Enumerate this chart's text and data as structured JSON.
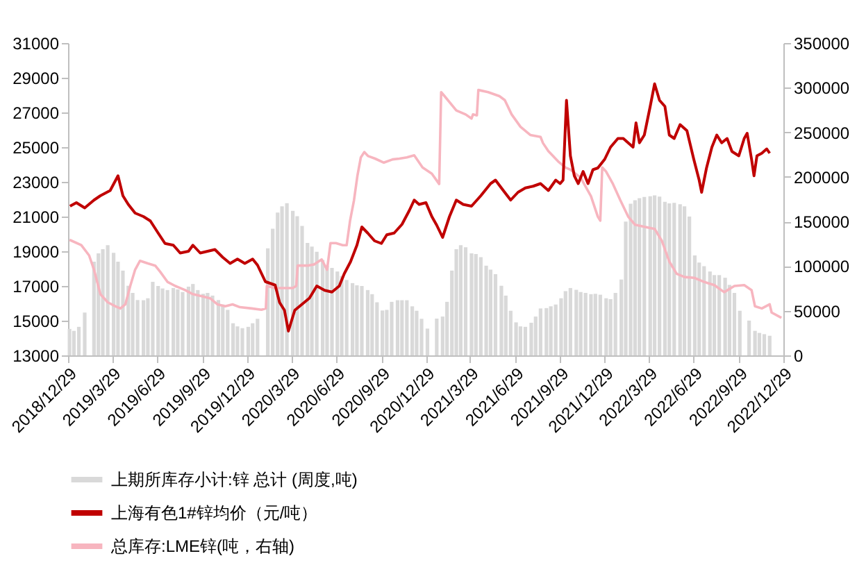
{
  "chart_data": {
    "type": "line",
    "xlim": [
      "2018-12-29",
      "2022-12-29"
    ],
    "xticks": [
      {
        "value": "2018-12-29",
        "label": "2018/12/29"
      },
      {
        "value": "2019-03-29",
        "label": "2019/3/29"
      },
      {
        "value": "2019-06-29",
        "label": "2019/6/29"
      },
      {
        "value": "2019-09-29",
        "label": "2019/9/29"
      },
      {
        "value": "2019-12-29",
        "label": "2019/12/29"
      },
      {
        "value": "2020-03-29",
        "label": "2020/3/29"
      },
      {
        "value": "2020-06-29",
        "label": "2020/6/29"
      },
      {
        "value": "2020-09-29",
        "label": "2020/9/29"
      },
      {
        "value": "2020-12-29",
        "label": "2020/12/29"
      },
      {
        "value": "2021-03-29",
        "label": "2021/3/29"
      },
      {
        "value": "2021-06-29",
        "label": "2021/6/29"
      },
      {
        "value": "2021-09-29",
        "label": "2021/9/29"
      },
      {
        "value": "2021-12-29",
        "label": "2021/12/29"
      },
      {
        "value": "2022-03-29",
        "label": "2022/3/29"
      },
      {
        "value": "2022-06-29",
        "label": "2022/6/29"
      },
      {
        "value": "2022-09-29",
        "label": "2022/9/29"
      },
      {
        "value": "2022-12-29",
        "label": "2022/12/29"
      }
    ],
    "ylim": [
      13000,
      31000
    ],
    "yticks": [
      13000,
      15000,
      17000,
      19000,
      21000,
      23000,
      25000,
      27000,
      29000,
      31000
    ],
    "y2lim": [
      0,
      350000
    ],
    "y2ticks": [
      0,
      50000,
      100000,
      150000,
      200000,
      250000,
      300000,
      350000
    ],
    "grid": false,
    "legend": "bottom",
    "series": [
      {
        "name": "上期所库存小计:锌  总计  (周度,吨)",
        "type": "bar",
        "axis": "y2",
        "color": "#d9d9d9",
        "x": [
          "2019-01-01",
          "2019-01-10",
          "2019-01-20",
          "2019-02-01",
          "2019-02-10",
          "2019-02-20",
          "2019-03-01",
          "2019-03-10",
          "2019-03-20",
          "2019-04-01",
          "2019-04-10",
          "2019-04-20",
          "2019-05-01",
          "2019-05-10",
          "2019-05-20",
          "2019-06-01",
          "2019-06-10",
          "2019-06-20",
          "2019-07-01",
          "2019-07-10",
          "2019-07-20",
          "2019-08-01",
          "2019-08-10",
          "2019-08-20",
          "2019-09-01",
          "2019-09-10",
          "2019-09-20",
          "2019-10-01",
          "2019-10-10",
          "2019-10-20",
          "2019-11-01",
          "2019-11-10",
          "2019-11-20",
          "2019-12-01",
          "2019-12-10",
          "2019-12-20",
          "2020-01-01",
          "2020-01-10",
          "2020-01-20",
          "2020-02-01",
          "2020-02-10",
          "2020-02-20",
          "2020-03-01",
          "2020-03-10",
          "2020-03-20",
          "2020-04-01",
          "2020-04-10",
          "2020-04-20",
          "2020-05-01",
          "2020-05-10",
          "2020-05-20",
          "2020-06-01",
          "2020-06-10",
          "2020-06-20",
          "2020-07-01",
          "2020-07-10",
          "2020-07-20",
          "2020-08-01",
          "2020-08-10",
          "2020-08-20",
          "2020-09-01",
          "2020-09-10",
          "2020-09-20",
          "2020-10-01",
          "2020-10-10",
          "2020-10-20",
          "2020-11-01",
          "2020-11-10",
          "2020-11-20",
          "2020-12-01",
          "2020-12-10",
          "2020-12-20",
          "2021-01-01",
          "2021-01-10",
          "2021-01-20",
          "2021-02-01",
          "2021-02-10",
          "2021-02-20",
          "2021-03-01",
          "2021-03-10",
          "2021-03-20",
          "2021-04-01",
          "2021-04-10",
          "2021-04-20",
          "2021-05-01",
          "2021-05-10",
          "2021-05-20",
          "2021-06-01",
          "2021-06-10",
          "2021-06-20",
          "2021-07-01",
          "2021-07-10",
          "2021-07-20",
          "2021-08-01",
          "2021-08-10",
          "2021-08-20",
          "2021-09-01",
          "2021-09-10",
          "2021-09-20",
          "2021-10-01",
          "2021-10-10",
          "2021-10-20",
          "2021-11-01",
          "2021-11-10",
          "2021-11-20",
          "2021-12-01",
          "2021-12-10",
          "2021-12-20",
          "2022-01-01",
          "2022-01-10",
          "2022-01-20",
          "2022-02-01",
          "2022-02-10",
          "2022-02-20",
          "2022-03-01",
          "2022-03-10",
          "2022-03-20",
          "2022-04-01",
          "2022-04-10",
          "2022-04-20",
          "2022-05-01",
          "2022-05-10",
          "2022-05-20",
          "2022-06-01",
          "2022-06-10",
          "2022-06-20",
          "2022-07-01",
          "2022-07-10",
          "2022-07-20",
          "2022-08-01",
          "2022-08-10",
          "2022-08-20",
          "2022-09-01",
          "2022-09-10",
          "2022-09-20",
          "2022-10-01",
          "2022-10-10",
          "2022-10-20",
          "2022-11-01",
          "2022-11-10",
          "2022-11-20",
          "2022-12-01"
        ],
        "values": [
          29700,
          27500,
          32000,
          48000,
          null,
          105000,
          114400,
          119000,
          123500,
          115000,
          105000,
          95000,
          78000,
          70000,
          62000,
          61800,
          64000,
          82400,
          77800,
          75000,
          73200,
          75500,
          74000,
          71000,
          77000,
          80000,
          73200,
          69000,
          70000,
          67000,
          62000,
          57000,
          51000,
          36000,
          32500,
          30500,
          32000,
          36000,
          41000,
          null,
          120000,
          142000,
          160000,
          167000,
          170600,
          162000,
          156000,
          145000,
          126000,
          122000,
          116000,
          107000,
          100600,
          98000,
          94000,
          89000,
          84500,
          81000,
          78500,
          77800,
          73200,
          68600,
          59500,
          50300,
          51000,
          60000,
          61800,
          61800,
          61800,
          55000,
          50000,
          41000,
          30000,
          null,
          41200,
          43500,
          60000,
          95000,
          119000,
          123500,
          121200,
          114400,
          113500,
          110000,
          100600,
          96100,
          91000,
          78000,
          67000,
          50000,
          37000,
          32500,
          32000,
          36600,
          43500,
          52600,
          53000,
          55000,
          57000,
          64000,
          72000,
          75500,
          73500,
          71000,
          70000,
          68600,
          69000,
          68000,
          64000,
          63000,
          70000,
          85000,
          150000,
          170000,
          173800,
          176100,
          177500,
          178400,
          179300,
          178000,
          172000,
          170400,
          171000,
          169300,
          167000,
          155500,
          112000,
          104000,
          100000,
          94000,
          90000,
          90000,
          87000,
          79000,
          70000,
          50000,
          null,
          39000,
          27500,
          25200,
          23800,
          22000
        ]
      },
      {
        "name": "上海有色1#锌均价（元/吨）",
        "type": "line",
        "color": "#c00000",
        "x": [
          "2019-01-02",
          "2019-01-15",
          "2019-02-01",
          "2019-02-20",
          "2019-03-05",
          "2019-03-25",
          "2019-04-10",
          "2019-04-20",
          "2019-05-01",
          "2019-05-15",
          "2019-06-01",
          "2019-06-15",
          "2019-07-01",
          "2019-07-15",
          "2019-08-01",
          "2019-08-15",
          "2019-09-01",
          "2019-09-10",
          "2019-09-25",
          "2019-10-10",
          "2019-10-25",
          "2019-11-10",
          "2019-11-25",
          "2019-12-10",
          "2019-12-25",
          "2020-01-10",
          "2020-01-20",
          "2020-02-05",
          "2020-02-25",
          "2020-03-05",
          "2020-03-15",
          "2020-03-23",
          "2020-04-05",
          "2020-04-20",
          "2020-05-05",
          "2020-05-20",
          "2020-06-05",
          "2020-06-20",
          "2020-07-05",
          "2020-07-15",
          "2020-07-28",
          "2020-08-10",
          "2020-08-20",
          "2020-09-01",
          "2020-09-15",
          "2020-09-29",
          "2020-10-10",
          "2020-10-25",
          "2020-11-10",
          "2020-11-25",
          "2020-12-05",
          "2020-12-15",
          "2020-12-29",
          "2021-01-10",
          "2021-01-20",
          "2021-02-01",
          "2021-02-15",
          "2021-03-01",
          "2021-03-15",
          "2021-04-01",
          "2021-04-20",
          "2021-05-10",
          "2021-05-20",
          "2021-06-05",
          "2021-06-20",
          "2021-07-05",
          "2021-07-20",
          "2021-08-05",
          "2021-08-20",
          "2021-09-05",
          "2021-09-20",
          "2021-09-29",
          "2021-10-05",
          "2021-10-12",
          "2021-10-20",
          "2021-10-28",
          "2021-11-05",
          "2021-11-15",
          "2021-11-25",
          "2021-12-05",
          "2021-12-15",
          "2021-12-29",
          "2022-01-10",
          "2022-01-25",
          "2022-02-05",
          "2022-02-15",
          "2022-02-25",
          "2022-03-03",
          "2022-03-10",
          "2022-03-20",
          "2022-04-01",
          "2022-04-10",
          "2022-04-20",
          "2022-05-01",
          "2022-05-10",
          "2022-05-20",
          "2022-06-01",
          "2022-06-15",
          "2022-06-29",
          "2022-07-10",
          "2022-07-15",
          "2022-07-25",
          "2022-08-05",
          "2022-08-15",
          "2022-08-25",
          "2022-09-05",
          "2022-09-15",
          "2022-09-29",
          "2022-10-10",
          "2022-10-16",
          "2022-10-25",
          "2022-10-30",
          "2022-11-05",
          "2022-11-15",
          "2022-11-25",
          "2022-12-01"
        ],
        "values": [
          21600,
          21800,
          21500,
          21950,
          22200,
          22500,
          23350,
          22200,
          21700,
          21200,
          21000,
          20750,
          20050,
          19450,
          19350,
          18900,
          19000,
          19350,
          18900,
          19000,
          19100,
          18650,
          18300,
          18550,
          18300,
          18550,
          18200,
          17250,
          17050,
          16050,
          15600,
          14400,
          15600,
          15950,
          16300,
          17000,
          16750,
          16650,
          17000,
          17700,
          18400,
          19350,
          20400,
          20050,
          19600,
          19450,
          19950,
          20050,
          20550,
          21350,
          21950,
          21700,
          21800,
          21000,
          20500,
          19800,
          21000,
          21950,
          21700,
          21600,
          22200,
          22900,
          23100,
          22500,
          21950,
          22400,
          22650,
          22750,
          22900,
          22500,
          23100,
          22900,
          23100,
          27700,
          24500,
          23350,
          22900,
          23600,
          22900,
          23700,
          23800,
          24300,
          25000,
          25500,
          25500,
          25250,
          25000,
          26400,
          25250,
          25700,
          27350,
          28650,
          27700,
          27350,
          25700,
          25500,
          26300,
          25950,
          24300,
          23100,
          22400,
          23800,
          25000,
          25700,
          25250,
          25500,
          24750,
          24500,
          25500,
          25800,
          24300,
          23350,
          24500,
          24650,
          24900,
          24650
        ]
      },
      {
        "name": "总库存:LME锌(吨，右轴)",
        "type": "line",
        "axis": "y2",
        "color": "#f7b5bf",
        "x": [
          "2019-01-01",
          "2019-01-25",
          "2019-02-10",
          "2019-02-20",
          "2019-03-05",
          "2019-03-20",
          "2019-04-05",
          "2019-04-15",
          "2019-04-25",
          "2019-05-05",
          "2019-05-15",
          "2019-05-25",
          "2019-06-10",
          "2019-06-25",
          "2019-07-05",
          "2019-07-20",
          "2019-08-05",
          "2019-08-25",
          "2019-09-10",
          "2019-09-28",
          "2019-10-15",
          "2019-10-30",
          "2019-11-15",
          "2019-11-30",
          "2019-12-15",
          "2020-01-08",
          "2020-01-28",
          "2020-02-06",
          "2020-02-08",
          "2020-02-25",
          "2020-03-15",
          "2020-04-01",
          "2020-04-08",
          "2020-04-11",
          "2020-05-01",
          "2020-05-15",
          "2020-05-30",
          "2020-06-10",
          "2020-06-17",
          "2020-06-28",
          "2020-07-12",
          "2020-07-20",
          "2020-07-27",
          "2020-08-04",
          "2020-08-11",
          "2020-08-18",
          "2020-08-25",
          "2020-09-02",
          "2020-09-16",
          "2020-10-04",
          "2020-10-22",
          "2020-11-05",
          "2020-11-20",
          "2020-12-05",
          "2020-12-22",
          "2021-01-10",
          "2021-01-25",
          "2021-01-29",
          "2021-02-05",
          "2021-03-01",
          "2021-03-20",
          "2021-04-01",
          "2021-04-04",
          "2021-04-12",
          "2021-04-15",
          "2021-05-05",
          "2021-05-28",
          "2021-06-08",
          "2021-06-22",
          "2021-07-10",
          "2021-07-30",
          "2021-08-20",
          "2021-08-25",
          "2021-09-05",
          "2021-09-25",
          "2021-10-10",
          "2021-10-20",
          "2021-11-10",
          "2021-12-01",
          "2021-12-15",
          "2021-12-20",
          "2021-12-24",
          "2022-01-01",
          "2022-01-15",
          "2022-01-30",
          "2022-02-15",
          "2022-03-01",
          "2022-03-20",
          "2022-04-10",
          "2022-04-25",
          "2022-05-10",
          "2022-05-25",
          "2022-06-10",
          "2022-06-30",
          "2022-07-20",
          "2022-08-10",
          "2022-08-30",
          "2022-09-20",
          "2022-10-10",
          "2022-10-25",
          "2022-11-01",
          "2022-11-15",
          "2022-12-01",
          "2022-12-05",
          "2022-12-25"
        ],
        "values": [
          129500,
          123500,
          112000,
          96000,
          68600,
          59500,
          55000,
          52600,
          57200,
          77800,
          96000,
          106000,
          103000,
          100600,
          93800,
          82400,
          77800,
          73200,
          68600,
          66300,
          64000,
          57200,
          55000,
          57200,
          54000,
          52600,
          51200,
          52600,
          77800,
          75500,
          75500,
          75500,
          77800,
          100600,
          100600,
          102000,
          107500,
          96000,
          125800,
          125800,
          123500,
          123500,
          151000,
          173800,
          201300,
          221900,
          227800,
          223300,
          220500,
          216000,
          219600,
          220500,
          221900,
          224200,
          210500,
          203600,
          192000,
          295000,
          290500,
          274500,
          270000,
          265400,
          270000,
          269000,
          297400,
          295000,
          290500,
          286000,
          270000,
          256200,
          247000,
          244800,
          237900,
          228800,
          217300,
          210500,
          208200,
          199000,
          178400,
          155500,
          151000,
          210500,
          205900,
          192000,
          173800,
          155500,
          146400,
          144100,
          141800,
          128100,
          105200,
          91500,
          87800,
          86900,
          82400,
          78700,
          70900,
          77800,
          78700,
          73200,
          55000,
          52600,
          57200,
          48000,
          42100
        ]
      }
    ]
  }
}
